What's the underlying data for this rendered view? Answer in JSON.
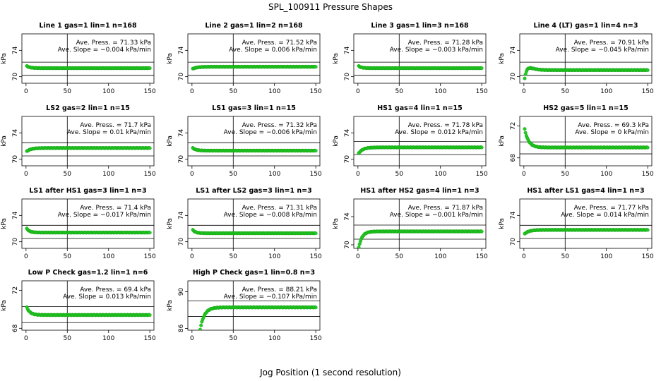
{
  "page_title": "SPL_100911  Pressure Shapes",
  "xlabel": "Jog Position (1 second resolution)",
  "ylabel": "kPa",
  "x_ticks": [
    0,
    50,
    100,
    150
  ],
  "avg_label": "Ave. Press. =",
  "slope_label": "Ave. Slope =",
  "avg_unit": "kPa",
  "slope_unit": "kPa/min",
  "colors": {
    "points": "#22cc22",
    "point_edge": "#119911",
    "lines": "#000000"
  },
  "chart_data": [
    {
      "type": "scatter",
      "title": "Line 1 gas=1 lin=1 n=168",
      "avg": "71.33",
      "slope": "−0.004",
      "ylim": [
        69.0,
        76.5
      ],
      "y_ticks": [
        70,
        74
      ],
      "hlines": [
        72.2,
        70.2
      ],
      "vline": 50,
      "x": [
        1,
        150
      ],
      "y_start": 71.6,
      "y_plateau": 71.3,
      "transition": 12
    },
    {
      "type": "scatter",
      "title": "Line 2 gas=1 lin=2 n=168",
      "avg": "71.52",
      "slope": "0.006",
      "ylim": [
        69.0,
        76.5
      ],
      "y_ticks": [
        70,
        74
      ],
      "hlines": [
        72.2,
        70.2
      ],
      "vline": 50,
      "x": [
        1,
        150
      ],
      "y_start": 71.2,
      "y_plateau": 71.5,
      "transition": 15
    },
    {
      "type": "scatter",
      "title": "Line 3 gas=1 lin=3 n=168",
      "avg": "71.28",
      "slope": "−0.003",
      "ylim": [
        69.0,
        76.5
      ],
      "y_ticks": [
        70,
        74
      ],
      "hlines": [
        72.2,
        70.2
      ],
      "vline": 50,
      "x": [
        1,
        150
      ],
      "y_start": 71.6,
      "y_plateau": 71.3,
      "transition": 10
    },
    {
      "type": "scatter",
      "title": "Line 4 (LT) gas=1 lin=4 n=3",
      "avg": "70.91",
      "slope": "−0.045",
      "ylim": [
        69.0,
        76.5
      ],
      "y_ticks": [
        70,
        74
      ],
      "hlines": [
        72.2,
        70.2
      ],
      "vline": 50,
      "x": [
        1,
        150
      ],
      "y_start": 69.7,
      "y_plateau": 71.0,
      "transition": 8,
      "overshoot": 0.5
    },
    {
      "type": "scatter",
      "title": "LS2 gas=2 lin=1 n=15",
      "avg": "71.7",
      "slope": "0.01",
      "ylim": [
        69.0,
        76.5
      ],
      "y_ticks": [
        70,
        74
      ],
      "hlines": [
        72.5,
        70.5
      ],
      "vline": 50,
      "x": [
        1,
        150
      ],
      "y_start": 71.2,
      "y_plateau": 71.7,
      "transition": 15
    },
    {
      "type": "scatter",
      "title": "LS1 gas=3 lin=1 n=15",
      "avg": "71.32",
      "slope": "−0.006",
      "ylim": [
        69.0,
        76.5
      ],
      "y_ticks": [
        70,
        74
      ],
      "hlines": [
        72.5,
        70.5
      ],
      "vline": 50,
      "x": [
        1,
        150
      ],
      "y_start": 71.7,
      "y_plateau": 71.3,
      "transition": 12
    },
    {
      "type": "scatter",
      "title": "HS1 gas=4 lin=1 n=15",
      "avg": "71.78",
      "slope": "0.012",
      "ylim": [
        69.0,
        76.5
      ],
      "y_ticks": [
        70,
        74
      ],
      "hlines": [
        72.7,
        70.7
      ],
      "vline": 50,
      "x": [
        1,
        150
      ],
      "y_start": 70.9,
      "y_plateau": 71.8,
      "transition": 15
    },
    {
      "type": "scatter",
      "title": "HS2 gas=5 lin=1 n=15",
      "avg": "69.3",
      "slope": "0",
      "ylim": [
        67.0,
        73.2
      ],
      "y_ticks": [
        68,
        72
      ],
      "hlines": [
        70.0,
        68.5
      ],
      "vline": 50,
      "x": [
        1,
        150
      ],
      "y_start": 71.6,
      "y_plateau": 69.3,
      "transition": 14
    },
    {
      "type": "scatter",
      "title": "LS1 after HS1 gas=3 lin=1 n=3",
      "avg": "71.4",
      "slope": "−0.017",
      "ylim": [
        69.0,
        76.5
      ],
      "y_ticks": [
        70,
        74
      ],
      "hlines": [
        72.5,
        70.5
      ],
      "vline": 50,
      "x": [
        1,
        150
      ],
      "y_start": 72.0,
      "y_plateau": 71.4,
      "transition": 10
    },
    {
      "type": "scatter",
      "title": "LS1 after LS2 gas=3 lin=1 n=3",
      "avg": "71.31",
      "slope": "−0.008",
      "ylim": [
        69.0,
        76.5
      ],
      "y_ticks": [
        70,
        74
      ],
      "hlines": [
        72.5,
        70.5
      ],
      "vline": 50,
      "x": [
        1,
        150
      ],
      "y_start": 71.8,
      "y_plateau": 71.3,
      "transition": 10
    },
    {
      "type": "scatter",
      "title": "HS1 after HS2 gas=4 lin=1 n=3",
      "avg": "71.87",
      "slope": "−0.001",
      "ylim": [
        69.5,
        76.5
      ],
      "y_ticks": [
        70,
        74
      ],
      "hlines": [
        72.8,
        70.8
      ],
      "vline": 50,
      "x": [
        1,
        150
      ],
      "y_start": 69.6,
      "y_plateau": 71.9,
      "transition": 12
    },
    {
      "type": "scatter",
      "title": "HS1 after LS1 gas=4 lin=1 n=3",
      "avg": "71.77",
      "slope": "0.014",
      "ylim": [
        69.0,
        76.5
      ],
      "y_ticks": [
        70,
        74
      ],
      "hlines": [
        72.5,
        70.5
      ],
      "vline": 50,
      "x": [
        1,
        150
      ],
      "y_start": 71.2,
      "y_plateau": 71.8,
      "transition": 15
    },
    {
      "type": "scatter",
      "title": "Low P Check gas=1.2 lin=1 n=6",
      "avg": "69.4",
      "slope": "0.013",
      "ylim": [
        67.8,
        73.0
      ],
      "y_ticks": [
        68,
        72
      ],
      "hlines": [
        70.3,
        68.6
      ],
      "vline": 50,
      "x": [
        1,
        150
      ],
      "y_start": 70.2,
      "y_plateau": 69.4,
      "transition": 12
    },
    {
      "type": "scatter",
      "title": "High P Check gas=1 lin=0.8 n=3",
      "avg": "88.21",
      "slope": "−0.107",
      "ylim": [
        85.8,
        91.2
      ],
      "y_ticks": [
        86,
        90
      ],
      "hlines": [
        89.0,
        87.3
      ],
      "vline": 50,
      "x": [
        1,
        150
      ],
      "y_start": 85.9,
      "y_plateau": 88.3,
      "transition": 15,
      "first_x": 10
    }
  ]
}
